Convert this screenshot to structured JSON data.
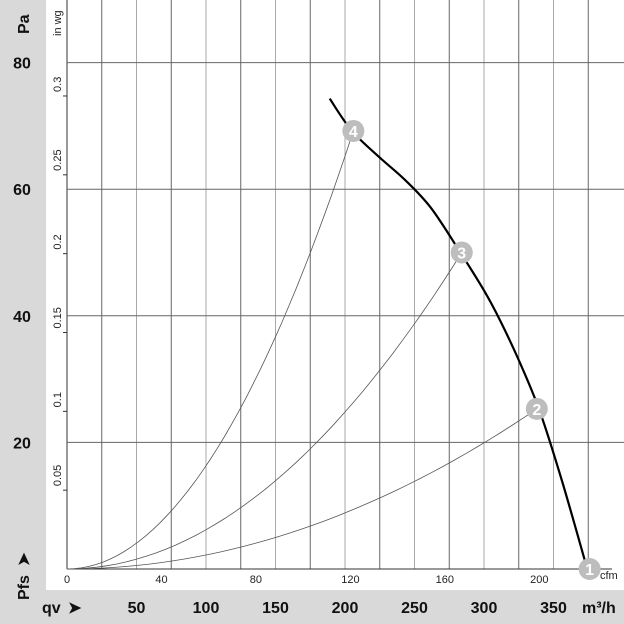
{
  "chart_data": {
    "type": "line",
    "title": "",
    "x_primary": {
      "label": "qv",
      "unit": "m³/h",
      "ticks": [
        50,
        100,
        150,
        200,
        250,
        300,
        350
      ],
      "range": [
        0,
        390
      ]
    },
    "x_secondary": {
      "unit": "cfm",
      "ticks": [
        0,
        40,
        80,
        120,
        160,
        200
      ]
    },
    "y_primary": {
      "label": "Pfs",
      "unit": "Pa",
      "ticks": [
        20,
        40,
        60,
        80
      ],
      "range": [
        0,
        90
      ]
    },
    "y_secondary": {
      "unit": "in wg",
      "ticks": [
        "0.05",
        "0.1",
        "0.15",
        "0.2",
        "0.25",
        "0.3"
      ]
    },
    "grid": true,
    "fan_curve": {
      "x": [
        189,
        205,
        225,
        243,
        262,
        283,
        300,
        311.5,
        325,
        340,
        356,
        373
      ],
      "y": [
        74.3,
        69.2,
        65,
        61.5,
        57,
        50,
        44,
        39.3,
        33,
        25,
        14,
        1
      ]
    },
    "operating_points": [
      {
        "label": "1",
        "x": 376,
        "y": 0
      },
      {
        "label": "2",
        "x": 338,
        "y": 25.3
      },
      {
        "label": "3",
        "x": 284,
        "y": 50
      },
      {
        "label": "4",
        "x": 206,
        "y": 69.2
      }
    ],
    "colors": {
      "fan_curve": "#000000",
      "system_curve": "#555555",
      "marker": "#bdbdbd",
      "band": "#d9d9d9",
      "grid": "#666666"
    }
  }
}
